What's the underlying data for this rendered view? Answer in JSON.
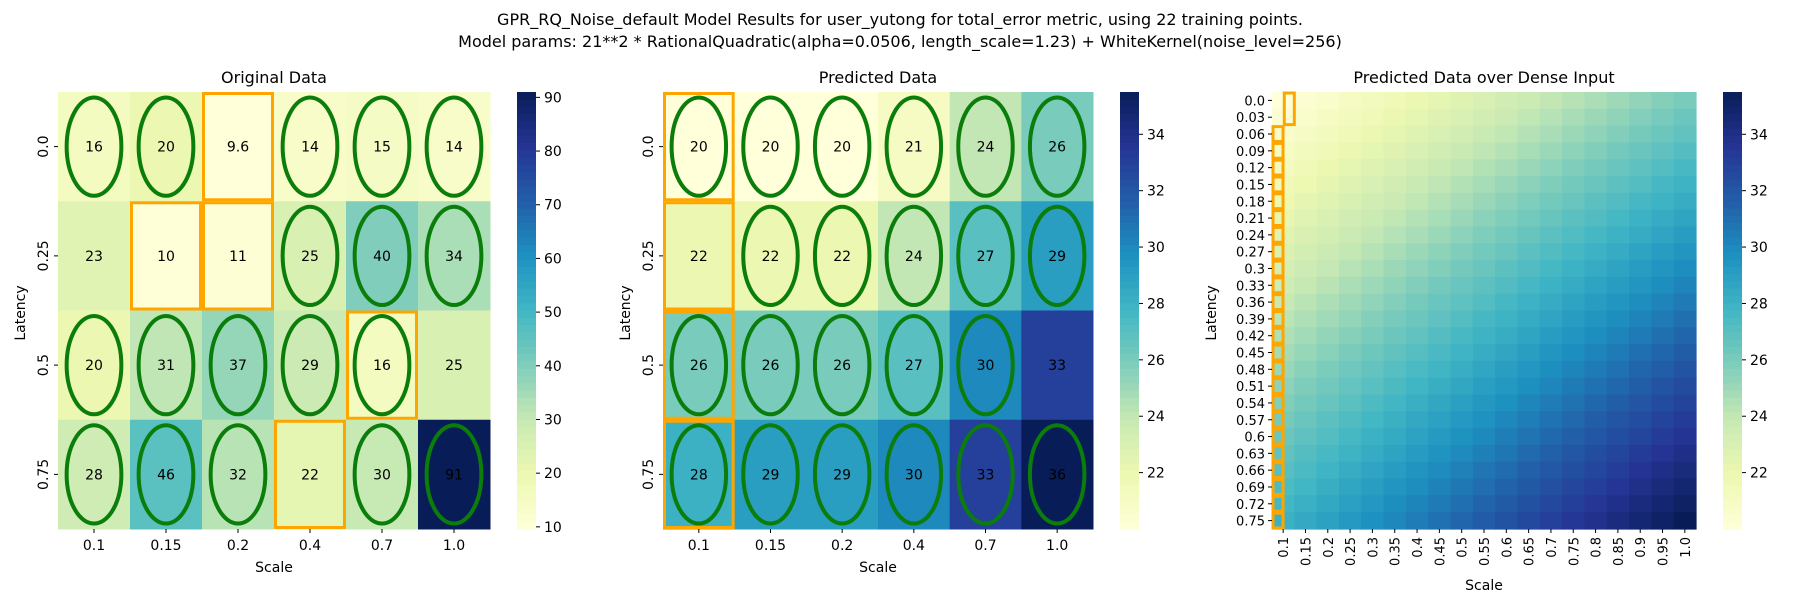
{
  "suptitle": {
    "line1": "GPR_RQ_Noise_default Model Results for user_yutong for total_error metric, using 22 training points.",
    "line2": "Model params: 21**2 * RationalQuadratic(alpha=0.0506, length_scale=1.23) + WhiteKernel(noise_level=256)"
  },
  "chart_data": [
    {
      "type": "heatmap",
      "title": "Original Data",
      "xlabel": "Scale",
      "ylabel": "Latency",
      "x": [
        "0.1",
        "0.15",
        "0.2",
        "0.4",
        "0.7",
        "1.0"
      ],
      "y": [
        "0.0",
        "0.25",
        "0.5",
        "0.75"
      ],
      "values": [
        [
          16,
          20,
          9.6,
          14,
          15,
          14
        ],
        [
          23,
          10,
          11,
          25,
          40,
          34
        ],
        [
          20,
          31,
          37,
          29,
          16,
          25
        ],
        [
          28,
          46,
          32,
          22,
          30,
          91
        ]
      ],
      "colormap": "YlGnBu",
      "vmin": 9.6,
      "vmax": 91,
      "colorbar_ticks": [
        10,
        20,
        30,
        40,
        50,
        60,
        70,
        80,
        90
      ],
      "ellipses": [
        [
          0,
          0
        ],
        [
          0,
          1
        ],
        [
          0,
          3
        ],
        [
          0,
          4
        ],
        [
          0,
          5
        ],
        [
          1,
          3
        ],
        [
          1,
          4
        ],
        [
          1,
          5
        ],
        [
          2,
          0
        ],
        [
          2,
          1
        ],
        [
          2,
          2
        ],
        [
          2,
          3
        ],
        [
          2,
          4
        ],
        [
          3,
          0
        ],
        [
          3,
          1
        ],
        [
          3,
          2
        ],
        [
          3,
          4
        ],
        [
          3,
          5
        ]
      ],
      "boxes": [
        [
          0,
          2
        ],
        [
          1,
          1
        ],
        [
          1,
          2
        ],
        [
          2,
          4
        ],
        [
          3,
          3
        ]
      ],
      "ellipse_color": "#0a7d0a",
      "box_color": "#ffa500"
    },
    {
      "type": "heatmap",
      "title": "Predicted Data",
      "xlabel": "Scale",
      "ylabel": "Latency",
      "x": [
        "0.1",
        "0.15",
        "0.2",
        "0.4",
        "0.7",
        "1.0"
      ],
      "y": [
        "0.0",
        "0.25",
        "0.5",
        "0.75"
      ],
      "values": [
        [
          20,
          20,
          20,
          21,
          24,
          26
        ],
        [
          22,
          22,
          22,
          24,
          27,
          29
        ],
        [
          26,
          26,
          26,
          27,
          30,
          33
        ],
        [
          28,
          29,
          29,
          30,
          33,
          36
        ]
      ],
      "colormap": "YlGnBu",
      "vmin": 20,
      "vmax": 35.5,
      "colorbar_ticks": [
        22,
        24,
        26,
        28,
        30,
        32,
        34
      ],
      "ellipses": [
        [
          0,
          0
        ],
        [
          0,
          1
        ],
        [
          0,
          2
        ],
        [
          0,
          3
        ],
        [
          0,
          4
        ],
        [
          0,
          5
        ],
        [
          1,
          1
        ],
        [
          1,
          2
        ],
        [
          1,
          3
        ],
        [
          1,
          4
        ],
        [
          1,
          5
        ],
        [
          2,
          0
        ],
        [
          2,
          1
        ],
        [
          2,
          2
        ],
        [
          2,
          3
        ],
        [
          2,
          4
        ],
        [
          3,
          0
        ],
        [
          3,
          1
        ],
        [
          3,
          2
        ],
        [
          3,
          3
        ],
        [
          3,
          4
        ],
        [
          3,
          5
        ]
      ],
      "boxes": [
        [
          0,
          0
        ],
        [
          1,
          0
        ],
        [
          2,
          0
        ],
        [
          3,
          0
        ]
      ],
      "ellipse_color": "#0a7d0a",
      "box_color": "#ffa500"
    },
    {
      "type": "heatmap",
      "title": "Predicted Data over Dense Input",
      "xlabel": "Scale",
      "ylabel": "Latency",
      "x": [
        "0.1",
        "0.15",
        "0.2",
        "0.25",
        "0.3",
        "0.35",
        "0.4",
        "0.45",
        "0.5",
        "0.55",
        "0.6",
        "0.65",
        "0.7",
        "0.75",
        "0.8",
        "0.85",
        "0.9",
        "0.95",
        "1.0"
      ],
      "y": [
        "0.0",
        "0.03",
        "0.06",
        "0.09",
        "0.12",
        "0.15",
        "0.18",
        "0.21",
        "0.24",
        "0.27",
        "0.3",
        "0.33",
        "0.36",
        "0.39",
        "0.42",
        "0.45",
        "0.48",
        "0.51",
        "0.54",
        "0.57",
        "0.6",
        "0.63",
        "0.66",
        "0.69",
        "0.72",
        "0.75"
      ],
      "corner_values": {
        "top_left": 20,
        "top_right": 26,
        "bottom_left": 28,
        "bottom_right": 35.5
      },
      "colormap": "YlGnBu",
      "vmin": 20,
      "vmax": 35.5,
      "colorbar_ticks": [
        22,
        24,
        26,
        28,
        30,
        32,
        34
      ],
      "box_color": "#ffa500"
    }
  ]
}
